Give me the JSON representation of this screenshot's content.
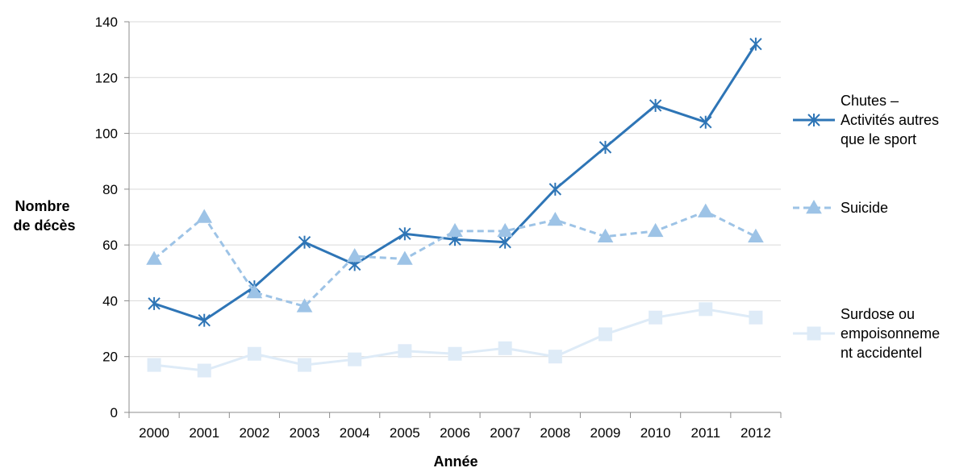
{
  "chart_data": {
    "type": "line",
    "title": "",
    "xlabel": "Année",
    "ylabel_lines": [
      "Nombre",
      "de décès"
    ],
    "categories": [
      "2000",
      "2001",
      "2002",
      "2003",
      "2004",
      "2005",
      "2006",
      "2007",
      "2008",
      "2009",
      "2010",
      "2011",
      "2012"
    ],
    "ylim": [
      0,
      140
    ],
    "yticks": [
      0,
      20,
      40,
      60,
      80,
      100,
      120,
      140
    ],
    "grid": "horizontal",
    "legend_position": "right",
    "series": [
      {
        "name_lines": [
          "Chutes –",
          "Activités autres",
          "que le sport"
        ],
        "color": "#2e75b6",
        "marker": "asterisk",
        "dash": "solid",
        "values": [
          39,
          33,
          45,
          61,
          53,
          64,
          62,
          61,
          80,
          95,
          110,
          104,
          132
        ]
      },
      {
        "name_lines": [
          "Suicide"
        ],
        "color": "#9dc3e6",
        "marker": "triangle",
        "dash": "dashed",
        "values": [
          55,
          70,
          43,
          38,
          56,
          55,
          65,
          65,
          69,
          63,
          65,
          72,
          63
        ]
      },
      {
        "name_lines": [
          "Surdose ou",
          "empoisonneme",
          "nt accidentel"
        ],
        "color": "#deebf7",
        "marker": "square",
        "dash": "solid",
        "values": [
          17,
          15,
          21,
          17,
          19,
          22,
          21,
          23,
          20,
          28,
          34,
          37,
          34
        ]
      }
    ]
  }
}
